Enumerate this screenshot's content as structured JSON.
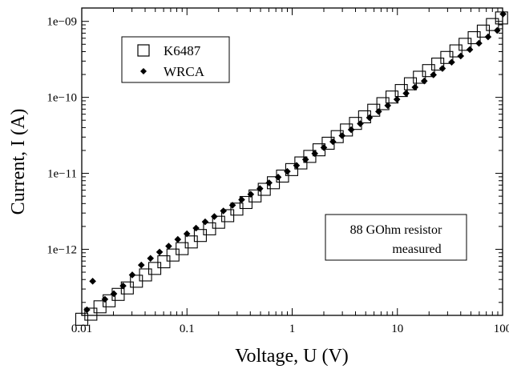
{
  "chart_data": {
    "type": "scatter",
    "x_scale": "log",
    "y_scale": "log",
    "xlabel": "Voltage, U (V)",
    "ylabel": "Current, I (A)",
    "xlim": [
      0.01,
      100
    ],
    "ylim": [
      1.35e-13,
      1.5e-09
    ],
    "x_ticks": [
      "0.01",
      "0.1",
      "1",
      "10",
      "100"
    ],
    "y_ticks": [
      "1e−12",
      "1e−11",
      "1e−10",
      "1e−09"
    ],
    "legend_position": "top-left",
    "series": [
      {
        "name": "K6487",
        "marker": "open-square",
        "color": "#000000",
        "x": [
          0.01,
          0.0122,
          0.0149,
          0.0182,
          0.0222,
          0.0271,
          0.0331,
          0.0404,
          0.0494,
          0.0603,
          0.0736,
          0.0899,
          0.11,
          0.134,
          0.164,
          0.2,
          0.244,
          0.298,
          0.364,
          0.444,
          0.543,
          0.663,
          0.81,
          0.99,
          1.21,
          1.47,
          1.8,
          2.2,
          2.68,
          3.28,
          4.0,
          4.88,
          5.96,
          7.28,
          8.89,
          10.9,
          13.3,
          16.2,
          19.8,
          24.2,
          29.5,
          36.0,
          44.0,
          53.7,
          65.6,
          80.1,
          97.8
        ],
        "y": [
          1.2e-13,
          1.4e-13,
          1.75e-13,
          2.1e-13,
          2.55e-13,
          3.1e-13,
          3.8e-13,
          4.6e-13,
          5.6e-13,
          6.85e-13,
          8.4e-13,
          1.02e-12,
          1.25e-12,
          1.52e-12,
          1.86e-12,
          2.27e-12,
          2.77e-12,
          3.38e-12,
          4.13e-12,
          5.04e-12,
          6.16e-12,
          7.52e-12,
          9.2e-12,
          1.12e-11,
          1.37e-11,
          1.67e-11,
          2.04e-11,
          2.49e-11,
          3.04e-11,
          3.72e-11,
          4.54e-11,
          5.54e-11,
          6.77e-11,
          8.26e-11,
          1.01e-10,
          1.23e-10,
          1.51e-10,
          1.84e-10,
          2.25e-10,
          2.74e-10,
          3.35e-10,
          4.09e-10,
          4.99e-10,
          6.1e-10,
          7.45e-10,
          9.09e-10,
          1.11e-09
        ]
      },
      {
        "name": "WRCA",
        "marker": "filled-diamond",
        "color": "#000000",
        "x": [
          0.0112,
          0.0127,
          0.0166,
          0.0202,
          0.0247,
          0.0302,
          0.0368,
          0.045,
          0.0549,
          0.067,
          0.0818,
          0.0999,
          0.122,
          0.149,
          0.182,
          0.222,
          0.271,
          0.331,
          0.404,
          0.494,
          0.603,
          0.736,
          0.899,
          1.1,
          1.34,
          1.64,
          2.0,
          2.44,
          2.98,
          3.64,
          4.44,
          5.43,
          6.63,
          8.1,
          9.9,
          12.1,
          14.7,
          18.0,
          22.0,
          26.8,
          32.8,
          40.0,
          48.8,
          59.6,
          72.8,
          88.9,
          101
        ],
        "y": [
          1.6e-13,
          3.8e-13,
          2.2e-13,
          2.6e-13,
          3.3e-13,
          4.6e-13,
          6.2e-13,
          7.6e-13,
          9.2e-13,
          1.1e-12,
          1.35e-12,
          1.6e-12,
          1.9e-12,
          2.3e-12,
          2.7e-12,
          3.2e-12,
          3.8e-12,
          4.5e-12,
          5.3e-12,
          6.3e-12,
          7.5e-12,
          8.9e-12,
          1.06e-11,
          1.27e-11,
          1.52e-11,
          1.82e-11,
          2.18e-11,
          2.61e-11,
          3.13e-11,
          3.75e-11,
          4.5e-11,
          5.4e-11,
          6.5e-11,
          7.8e-11,
          9.4e-11,
          1.13e-10,
          1.36e-10,
          1.64e-10,
          1.98e-10,
          2.4e-10,
          2.9e-10,
          3.5e-10,
          4.25e-10,
          5.15e-10,
          6.25e-10,
          7.6e-10,
          1.25e-09
        ]
      }
    ],
    "annotation": [
      "88 GOhm resistor",
      "measured"
    ]
  }
}
